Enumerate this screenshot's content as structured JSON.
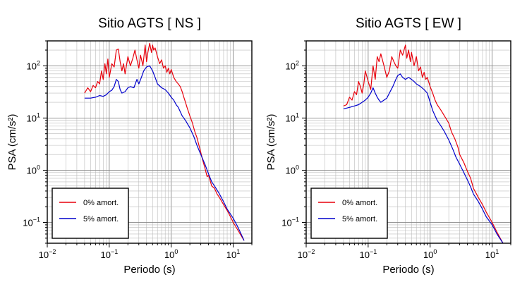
{
  "chart_data": [
    {
      "type": "line",
      "title": "Sitio AGTS [ NS ]",
      "xlabel": "Periodo (s)",
      "ylabel": "PSA (cm/s²)",
      "x_scale": "log",
      "y_scale": "log",
      "xlim": [
        0.01,
        20
      ],
      "ylim": [
        0.04,
        300
      ],
      "grid": true,
      "legend_placement": "bottom-left",
      "x_ticks": [
        {
          "value": 0.01,
          "base": "10",
          "exp": "−2"
        },
        {
          "value": 0.1,
          "base": "10",
          "exp": "−1"
        },
        {
          "value": 1,
          "base": "10",
          "exp": "0"
        },
        {
          "value": 10,
          "base": "10",
          "exp": "1"
        }
      ],
      "y_ticks": [
        {
          "value": 0.1,
          "base": "10",
          "exp": "−1"
        },
        {
          "value": 1,
          "base": "10",
          "exp": "0"
        },
        {
          "value": 10,
          "base": "10",
          "exp": "1"
        },
        {
          "value": 100,
          "base": "10",
          "exp": "2"
        }
      ],
      "series": [
        {
          "name": "0% amort.",
          "color": "#e8000b",
          "x": [
            0.04,
            0.045,
            0.05,
            0.055,
            0.06,
            0.065,
            0.07,
            0.075,
            0.08,
            0.085,
            0.09,
            0.095,
            0.1,
            0.11,
            0.12,
            0.13,
            0.14,
            0.15,
            0.16,
            0.17,
            0.18,
            0.2,
            0.22,
            0.24,
            0.26,
            0.28,
            0.3,
            0.32,
            0.35,
            0.38,
            0.4,
            0.42,
            0.45,
            0.48,
            0.5,
            0.52,
            0.55,
            0.6,
            0.65,
            0.7,
            0.75,
            0.8,
            0.85,
            0.9,
            0.95,
            1.0,
            1.1,
            1.2,
            1.3,
            1.4,
            1.5,
            1.6,
            1.7,
            1.8,
            2.0,
            2.2,
            2.4,
            2.6,
            2.8,
            3.0,
            3.2,
            3.5,
            3.8,
            4.0,
            4.5,
            5.0,
            5.5,
            6.0,
            7.0,
            8.0,
            9.0,
            10.0,
            12.0,
            15.0
          ],
          "values": [
            30,
            38,
            32,
            42,
            38,
            50,
            45,
            80,
            55,
            110,
            70,
            135,
            60,
            110,
            95,
            200,
            210,
            120,
            80,
            110,
            70,
            150,
            100,
            140,
            200,
            130,
            90,
            160,
            100,
            250,
            120,
            180,
            270,
            180,
            250,
            200,
            220,
            150,
            110,
            130,
            90,
            100,
            75,
            90,
            70,
            85,
            60,
            50,
            45,
            40,
            32,
            25,
            20,
            16,
            11,
            8,
            5.5,
            4.2,
            3.0,
            2.2,
            1.6,
            1.1,
            0.75,
            0.8,
            0.5,
            0.45,
            0.35,
            0.3,
            0.22,
            0.17,
            0.13,
            0.1,
            0.07,
            0.045
          ]
        },
        {
          "name": "5% amort.",
          "color": "#0000cc",
          "x": [
            0.04,
            0.05,
            0.06,
            0.07,
            0.08,
            0.09,
            0.1,
            0.11,
            0.12,
            0.13,
            0.14,
            0.15,
            0.16,
            0.18,
            0.2,
            0.22,
            0.25,
            0.28,
            0.3,
            0.33,
            0.36,
            0.4,
            0.45,
            0.5,
            0.55,
            0.6,
            0.7,
            0.8,
            0.9,
            1.0,
            1.1,
            1.2,
            1.3,
            1.5,
            1.7,
            2.0,
            2.3,
            2.6,
            3.0,
            3.5,
            4.0,
            4.5,
            5.0,
            6.0,
            7.0,
            8.0,
            10.0,
            12.0,
            15.0
          ],
          "values": [
            24,
            24,
            25,
            27,
            26,
            28,
            32,
            34,
            40,
            55,
            50,
            35,
            30,
            32,
            38,
            40,
            38,
            55,
            45,
            60,
            80,
            95,
            100,
            80,
            60,
            45,
            38,
            35,
            30,
            25,
            22,
            18,
            16,
            11,
            9,
            6.5,
            4.5,
            3.0,
            2.0,
            1.3,
            0.85,
            0.6,
            0.5,
            0.35,
            0.25,
            0.18,
            0.12,
            0.08,
            0.045
          ]
        }
      ]
    },
    {
      "type": "line",
      "title": "Sitio AGTS [ EW ]",
      "xlabel": "Periodo (s)",
      "ylabel": "PSA (cm/s²)",
      "x_scale": "log",
      "y_scale": "log",
      "xlim": [
        0.01,
        20
      ],
      "ylim": [
        0.04,
        300
      ],
      "grid": true,
      "legend_placement": "bottom-left",
      "x_ticks": [
        {
          "value": 0.01,
          "base": "10",
          "exp": "−2"
        },
        {
          "value": 0.1,
          "base": "10",
          "exp": "−1"
        },
        {
          "value": 1,
          "base": "10",
          "exp": "0"
        },
        {
          "value": 10,
          "base": "10",
          "exp": "1"
        }
      ],
      "y_ticks": [
        {
          "value": 0.1,
          "base": "10",
          "exp": "−1"
        },
        {
          "value": 1,
          "base": "10",
          "exp": "0"
        },
        {
          "value": 10,
          "base": "10",
          "exp": "1"
        },
        {
          "value": 100,
          "base": "10",
          "exp": "2"
        }
      ],
      "series": [
        {
          "name": "0% amort.",
          "color": "#e8000b",
          "x": [
            0.04,
            0.045,
            0.05,
            0.055,
            0.06,
            0.065,
            0.07,
            0.075,
            0.08,
            0.085,
            0.09,
            0.1,
            0.11,
            0.12,
            0.13,
            0.14,
            0.15,
            0.16,
            0.18,
            0.2,
            0.22,
            0.24,
            0.26,
            0.28,
            0.3,
            0.33,
            0.36,
            0.4,
            0.42,
            0.45,
            0.48,
            0.5,
            0.55,
            0.6,
            0.65,
            0.7,
            0.75,
            0.8,
            0.85,
            0.9,
            1.0,
            1.1,
            1.2,
            1.3,
            1.5,
            1.7,
            2.0,
            2.2,
            2.5,
            2.8,
            3.0,
            3.5,
            4.0,
            4.5,
            5.0,
            6.0,
            7.0,
            8.0,
            10.0,
            12.0,
            15.0
          ],
          "values": [
            17,
            18,
            25,
            22,
            32,
            28,
            50,
            40,
            30,
            45,
            80,
            50,
            35,
            100,
            55,
            150,
            120,
            170,
            100,
            60,
            80,
            150,
            120,
            100,
            90,
            200,
            160,
            250,
            140,
            200,
            120,
            180,
            100,
            150,
            80,
            95,
            60,
            75,
            55,
            60,
            40,
            30,
            22,
            18,
            14,
            11,
            8,
            5.5,
            4.0,
            2.8,
            2.0,
            1.4,
            0.95,
            0.7,
            0.45,
            0.3,
            0.22,
            0.16,
            0.1,
            0.065,
            0.04
          ]
        },
        {
          "name": "5% amort.",
          "color": "#0000cc",
          "x": [
            0.04,
            0.05,
            0.06,
            0.07,
            0.08,
            0.09,
            0.1,
            0.11,
            0.12,
            0.13,
            0.14,
            0.15,
            0.16,
            0.18,
            0.2,
            0.22,
            0.25,
            0.28,
            0.3,
            0.33,
            0.36,
            0.4,
            0.45,
            0.5,
            0.55,
            0.6,
            0.7,
            0.8,
            0.9,
            1.0,
            1.1,
            1.2,
            1.3,
            1.5,
            1.7,
            2.0,
            2.3,
            2.6,
            3.0,
            3.5,
            4.0,
            4.5,
            5.0,
            6.0,
            7.0,
            8.0,
            10.0,
            12.0,
            15.0
          ],
          "values": [
            15,
            16,
            17,
            18,
            20,
            22,
            25,
            30,
            38,
            30,
            25,
            22,
            20,
            22,
            24,
            30,
            40,
            55,
            65,
            70,
            60,
            55,
            60,
            55,
            50,
            45,
            40,
            35,
            30,
            20,
            14,
            11,
            9,
            7,
            5.5,
            3.8,
            2.6,
            1.8,
            1.3,
            0.9,
            0.65,
            0.48,
            0.35,
            0.25,
            0.18,
            0.13,
            0.09,
            0.06,
            0.04
          ]
        }
      ]
    }
  ]
}
